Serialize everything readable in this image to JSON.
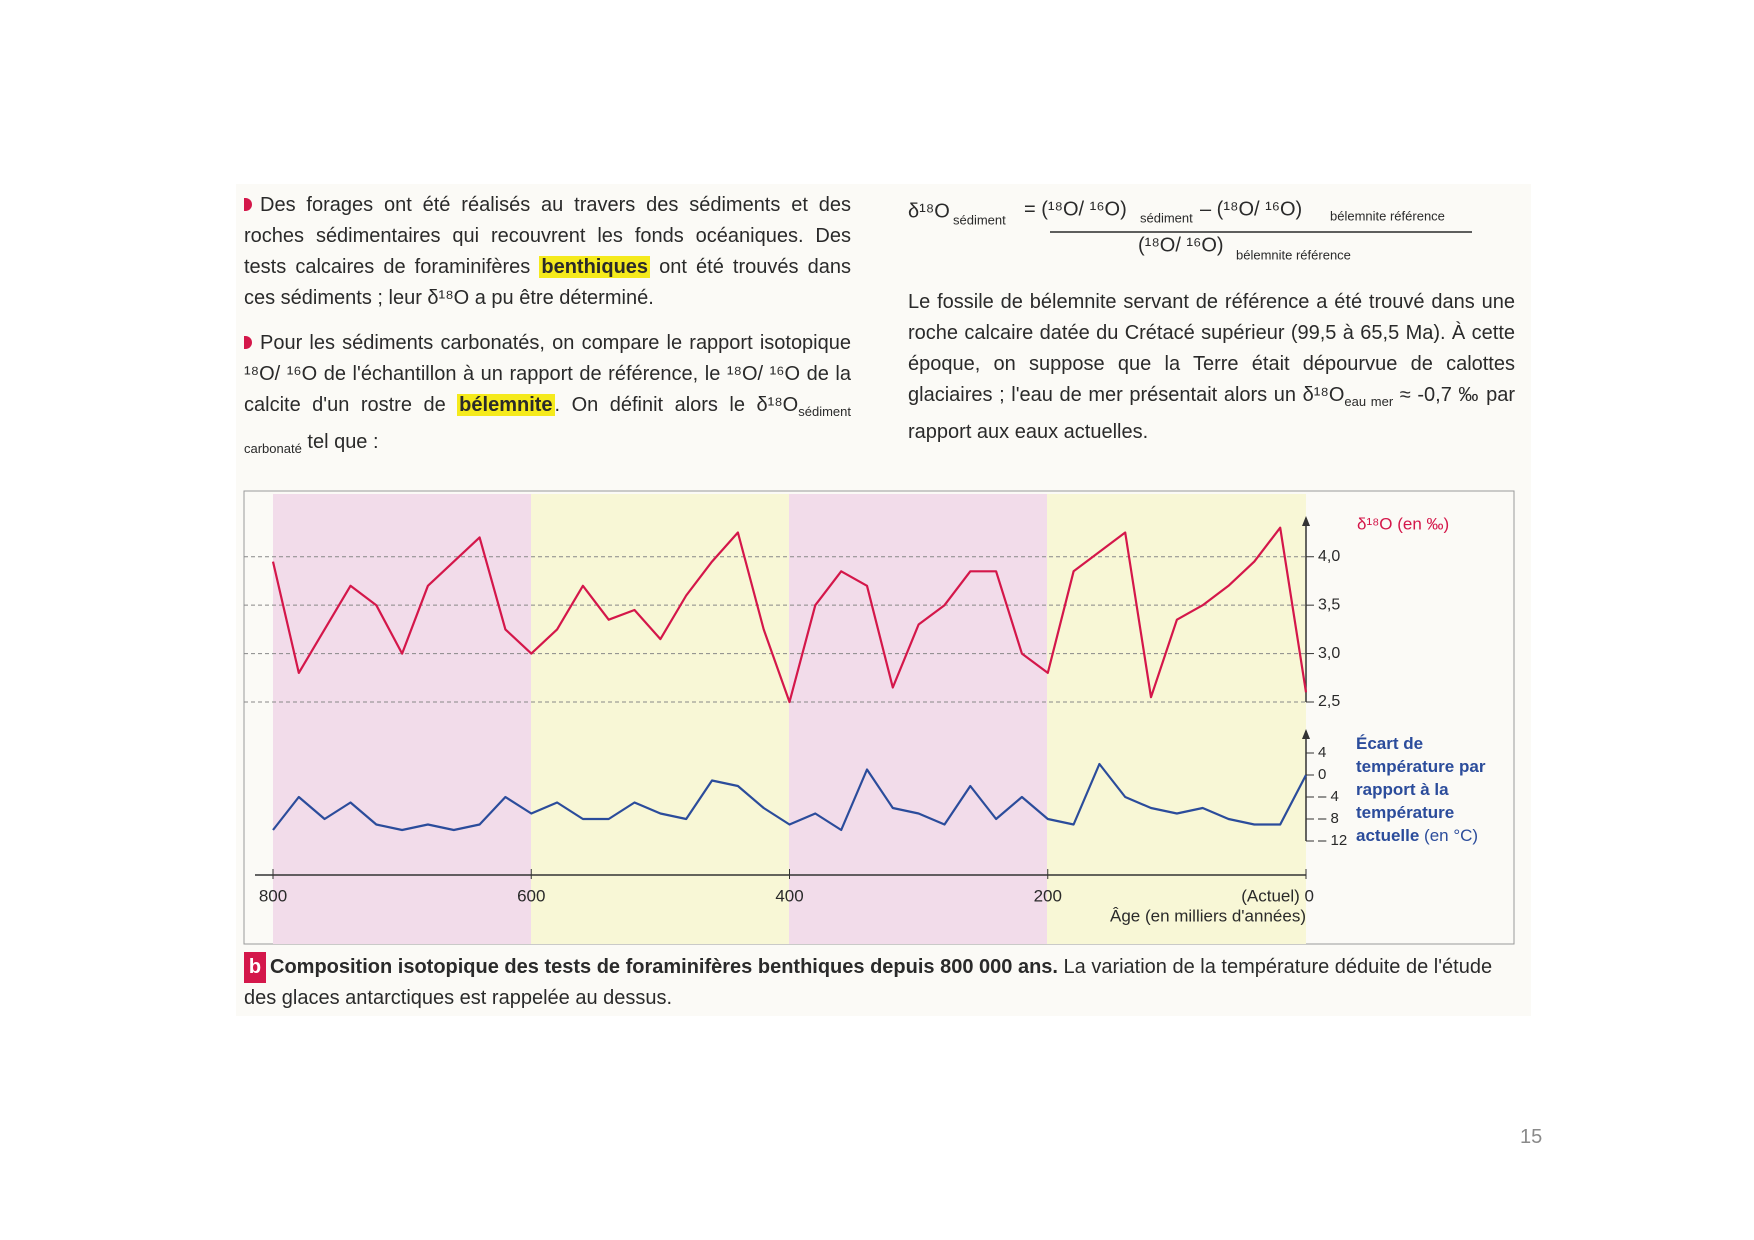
{
  "left_text": {
    "paragraphs": [
      [
        "Des forages ont été réalisés au travers des sédiments et des roches sédimentaires qui recouvrent les fonds océaniques. Des tests calcaires de foraminifères ",
        "benthiques",
        " ont été trouvés dans ces sédiments ; leur δ¹⁸O a pu être déterminé."
      ],
      [
        "Pour les sédiments carbonatés, on compare le rapport isotopique ¹⁸O/ ¹⁶O de l'échantillon à un rapport de référence, le ¹⁸O/ ¹⁶O de la calcite d'un rostre de ",
        "bélemnite",
        ". On définit alors le δ¹⁸O",
        "sédiment carbonaté",
        " tel que :"
      ]
    ]
  },
  "formula": {
    "lhs": "δ¹⁸O",
    "lhs_sub": "sédiment",
    "num_a": "= (¹⁸O/ ¹⁶O)",
    "num_a_sub": "sédiment",
    "num_b": "– (¹⁸O/ ¹⁶O)",
    "num_b_sub": "bélemnite référence",
    "den": "(¹⁸O/ ¹⁶O)",
    "den_sub": "bélemnite référence"
  },
  "right_text": [
    "Le fossile de bélemnite servant de référence a été trouvé dans une roche calcaire datée du Crétacé supérieur (99,5 à 65,5 Ma). À cette époque, on suppose que la Terre était dépourvue de calottes glaciaires ; l'eau de mer présentait alors un δ¹⁸O",
    "eau mer",
    " ≈ -0,7 ‰ par rapport aux eaux actuelles."
  ],
  "chart_data": {
    "type": "line",
    "x_label": "Âge (en milliers d'années)",
    "y_label": "δ¹⁸O (en ‰)",
    "y2_label": [
      "Écart de température par rapport à la température actuelle",
      " (en °C)"
    ],
    "x": [
      800,
      780,
      760,
      740,
      720,
      700,
      680,
      660,
      640,
      620,
      600,
      580,
      560,
      540,
      520,
      500,
      480,
      460,
      440,
      420,
      400,
      380,
      360,
      340,
      320,
      300,
      280,
      260,
      240,
      220,
      200,
      180,
      160,
      140,
      120,
      100,
      80,
      60,
      40,
      20,
      0
    ],
    "xlim": [
      800,
      0
    ],
    "xticks": [
      800,
      600,
      400,
      200,
      {
        "value": 0,
        "label": "(Actuel) 0"
      }
    ],
    "ylim": [
      2.5,
      4.4
    ],
    "yticks": [
      {
        "value": 4.0,
        "label": "4,0"
      },
      {
        "value": 3.5,
        "label": "3,5"
      },
      {
        "value": 3.0,
        "label": "3,0"
      },
      {
        "value": 2.5,
        "label": "2,5"
      }
    ],
    "y2lim": [
      -12,
      8
    ],
    "y2ticks": [
      4,
      0,
      {
        "value": -4,
        "label": "– 4"
      },
      {
        "value": -8,
        "label": "– 8"
      },
      {
        "value": -12,
        "label": "– 12"
      }
    ],
    "grid": true,
    "series": [
      {
        "color": "#d4174a",
        "values": [
          3.95,
          2.8,
          3.25,
          3.7,
          3.5,
          3.0,
          3.7,
          3.95,
          4.2,
          3.25,
          3.0,
          3.25,
          3.7,
          3.35,
          3.45,
          3.15,
          3.6,
          3.95,
          4.25,
          3.25,
          2.5,
          3.5,
          3.85,
          3.7,
          2.65,
          3.3,
          3.5,
          3.85,
          3.85,
          3.0,
          2.8,
          3.85,
          4.05,
          4.25,
          2.55,
          3.35,
          3.5,
          3.7,
          3.95,
          4.3,
          2.6
        ]
      },
      {
        "color": "#2b4c9b",
        "axis": "y2",
        "values": [
          -10,
          -4,
          -8,
          -5,
          -9,
          -10,
          -9,
          -10,
          -9,
          -4,
          -7,
          -5,
          -8,
          -8,
          -5,
          -7,
          -8,
          -1,
          -2,
          -6,
          -9,
          -7,
          -10,
          1,
          -6,
          -7,
          -9,
          -2,
          -8,
          -4,
          -8,
          -9,
          2,
          -4,
          -6,
          -7,
          -6,
          -8,
          -9,
          -9,
          0
        ]
      }
    ]
  },
  "caption": {
    "label": "b",
    "bold": "Composition isotopique des tests de foraminifères benthiques depuis 800 000 ans.",
    "text": " La variation de la température déduite de l'étude des glaces antarctiques est rappelée au dessus."
  },
  "page_number": "15"
}
